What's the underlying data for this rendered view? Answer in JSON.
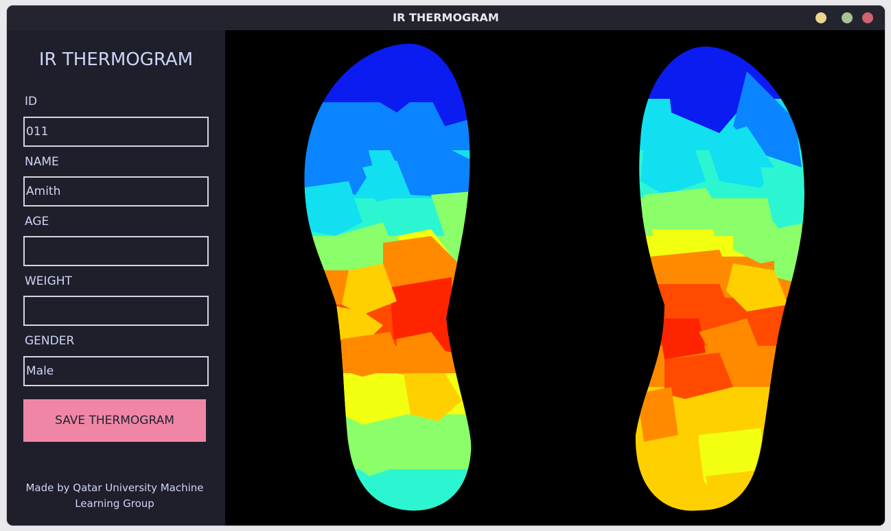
{
  "window": {
    "title": "IR THERMOGRAM",
    "controls": {
      "minimize_color": "#ecd58f",
      "maximize_color": "#a7c594",
      "close_color": "#d0636f"
    }
  },
  "sidebar": {
    "heading": "IR THERMOGRAM",
    "fields": {
      "id": {
        "label": "ID",
        "value": "011"
      },
      "name": {
        "label": "NAME",
        "value": "Amith"
      },
      "age": {
        "label": "AGE",
        "value": ""
      },
      "weight": {
        "label": "WEIGHT",
        "value": ""
      },
      "gender": {
        "label": "GENDER",
        "value": "Male"
      }
    },
    "save_button_label": "SAVE THERMOGRAM",
    "credits": "Made by Qatar University Machine Learning Group"
  },
  "thermogram": {
    "colormap": "jet",
    "colors": {
      "blue": "#0a1cf0",
      "azure": "#0a84ff",
      "cyan": "#12e0f0",
      "aqua": "#2cf6d2",
      "green": "#8aff6a",
      "yellow": "#f2ff10",
      "gold": "#ffd000",
      "orange": "#ff8a00",
      "red_orange": "#ff4a00",
      "red": "#ff2400"
    },
    "feet": [
      {
        "name": "left-foot"
      },
      {
        "name": "right-foot"
      }
    ]
  }
}
